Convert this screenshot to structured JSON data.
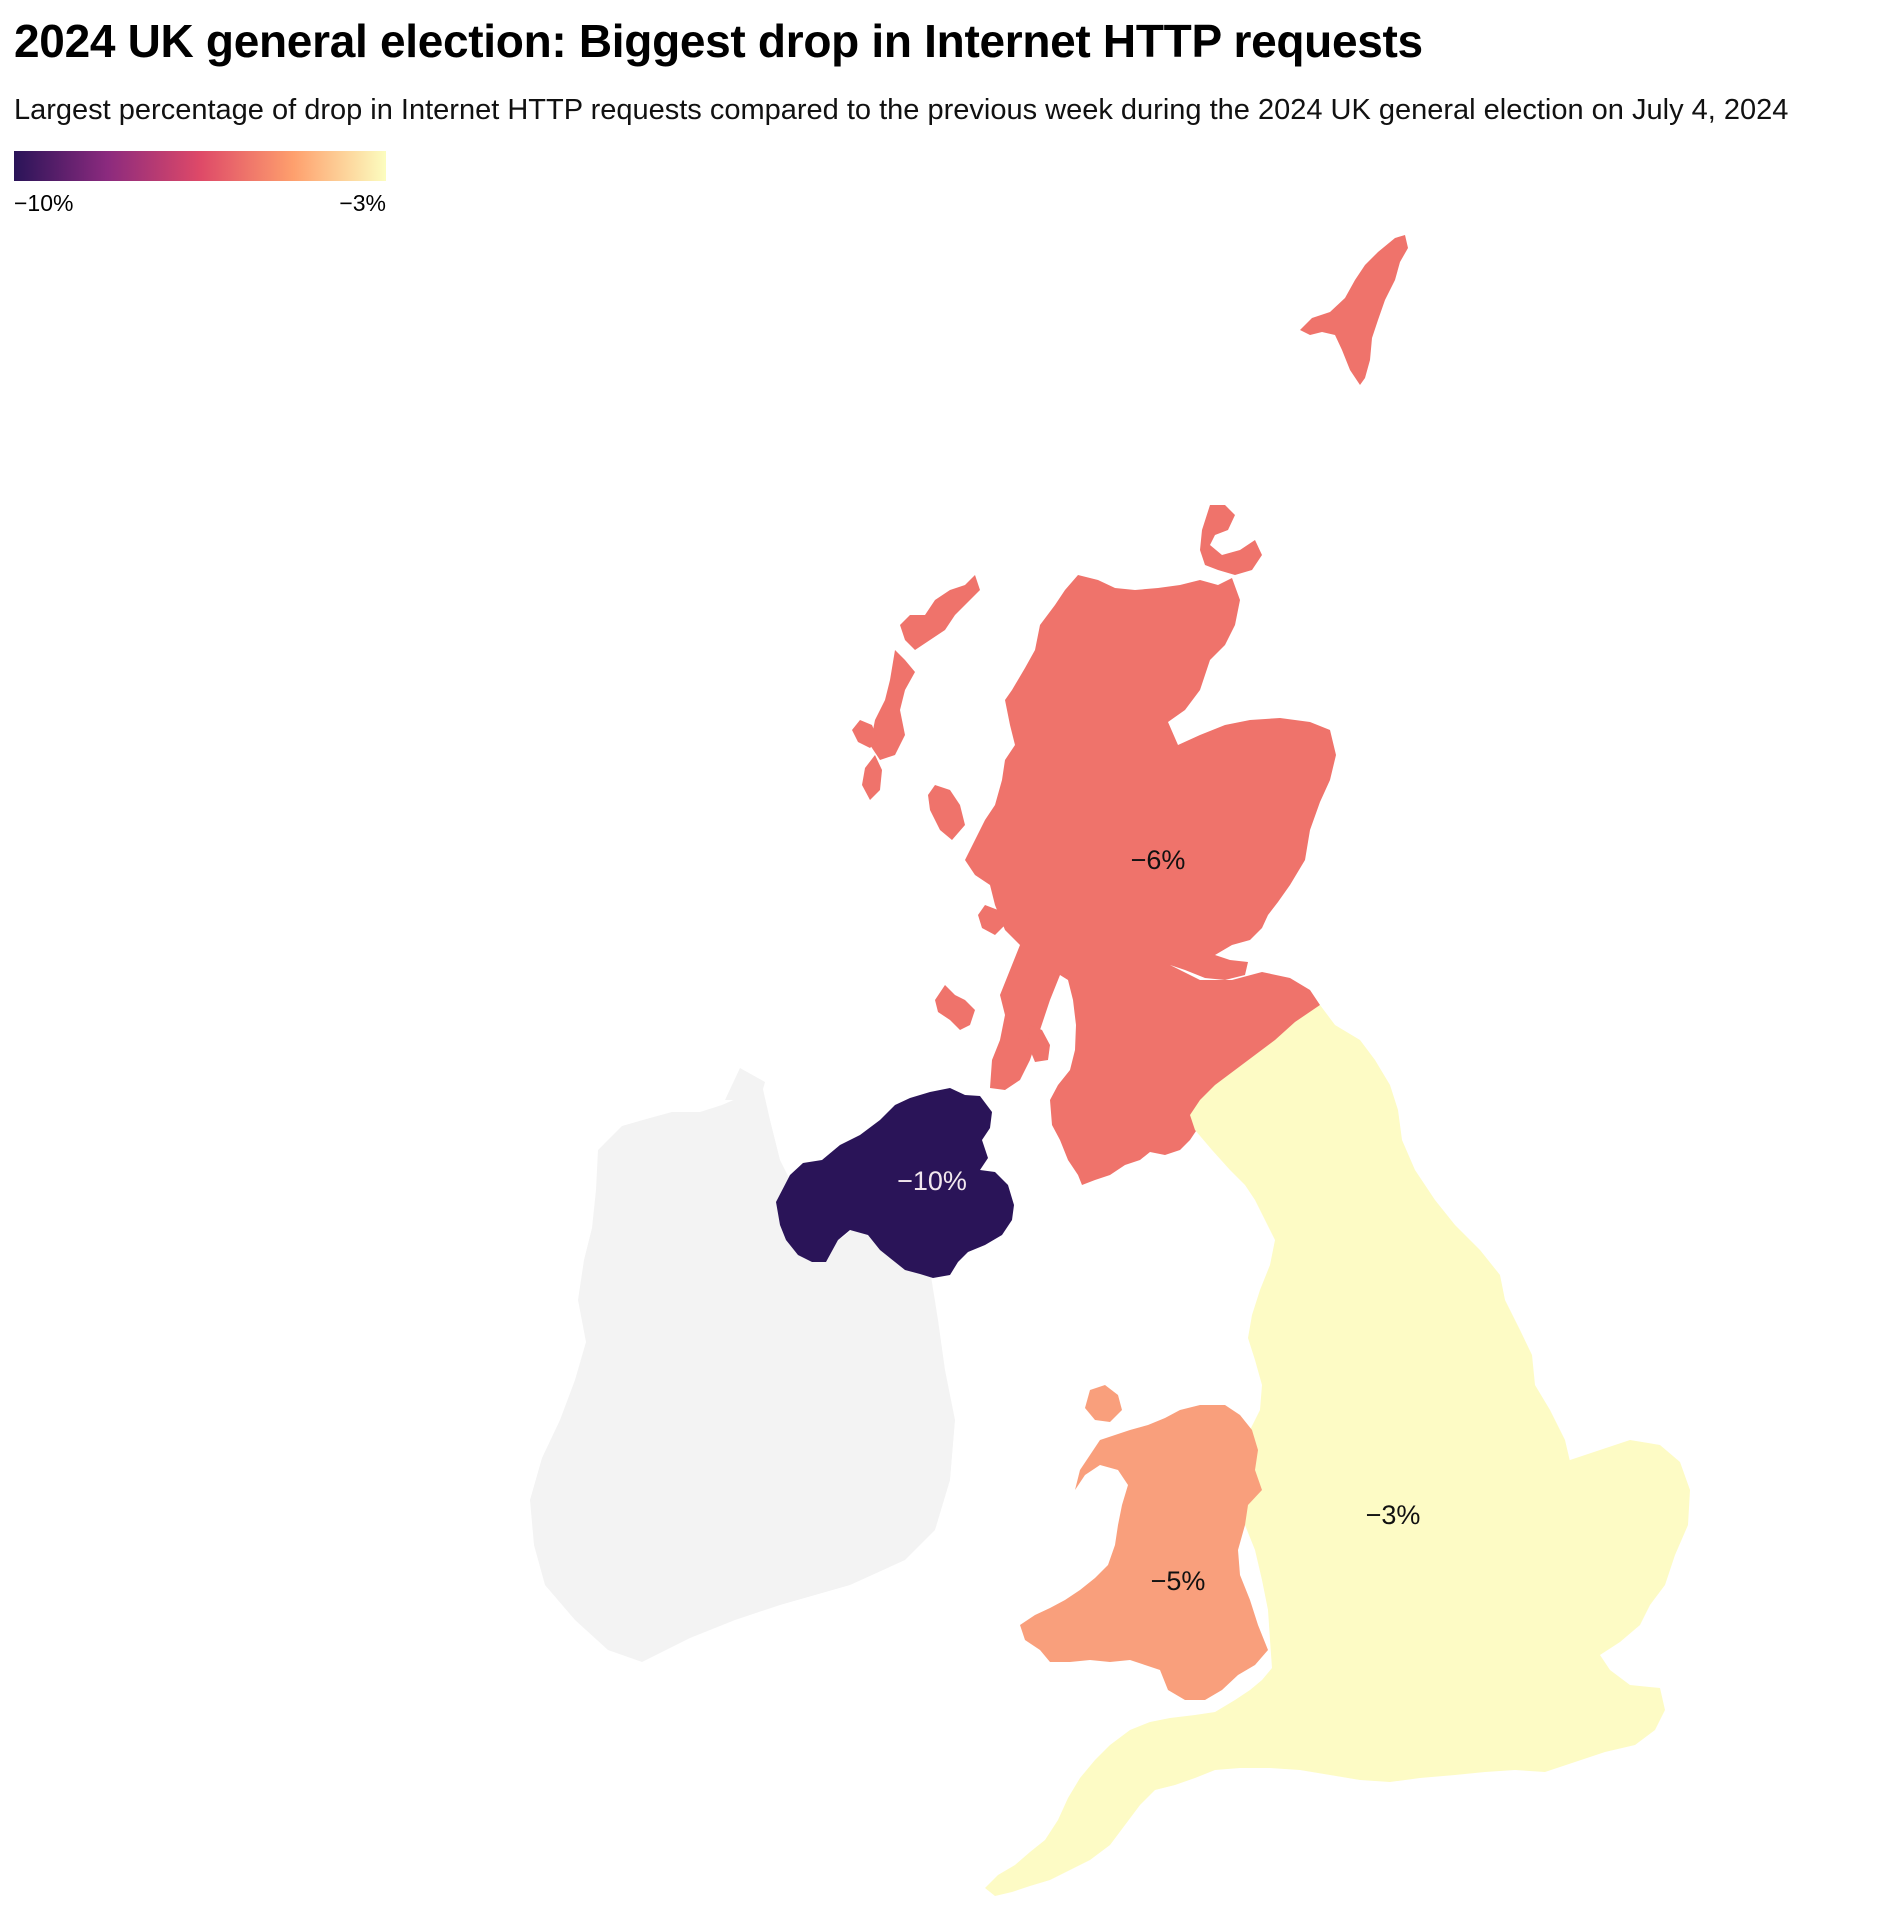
{
  "title": "2024 UK general election: Biggest drop in Internet HTTP requests",
  "subtitle": "Largest percentage of drop in Internet HTTP requests compared to the previous week during the 2024 UK general election on July 4, 2024",
  "legend": {
    "min_label": "−10%",
    "max_label": "−3%",
    "min_value": -10,
    "max_value": -3,
    "colors": [
      "#2a1458",
      "#8b2a7e",
      "#de4968",
      "#fe9f6d",
      "#fcfdbf"
    ]
  },
  "regions": [
    {
      "name": "Scotland",
      "value": -6,
      "label": "−6%",
      "color": "#ef736b",
      "label_color": "#111111"
    },
    {
      "name": "Northern Ireland",
      "value": -10,
      "label": "−10%",
      "color": "#2a1458",
      "label_color": "#f2e8ee"
    },
    {
      "name": "England",
      "value": -3,
      "label": "−3%",
      "color": "#fdfbc5",
      "label_color": "#111111"
    },
    {
      "name": "Wales",
      "value": -5,
      "label": "−5%",
      "color": "#f99f7c",
      "label_color": "#111111"
    }
  ],
  "context_region": {
    "name": "Ireland",
    "color": "#f3f3f3"
  }
}
